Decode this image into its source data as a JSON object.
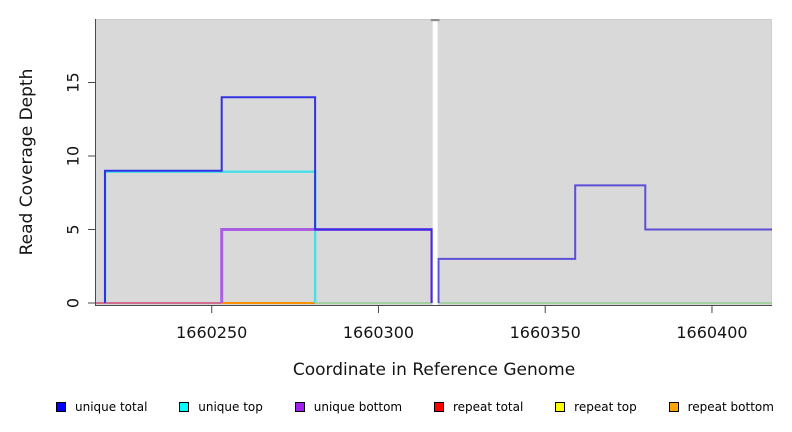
{
  "chart_data": {
    "type": "line",
    "subtype": "step-coverage-plot",
    "title": "",
    "xlabel": "Coordinate in Reference Genome",
    "ylabel": "Read Coverage Depth",
    "x_ticks": [
      1660250,
      1660300,
      1660350,
      1660400
    ],
    "x_tick_labels": [
      "1660250",
      "1660300",
      "1660350",
      "1660400"
    ],
    "y_ticks": [
      0,
      5,
      10,
      15
    ],
    "y_tick_labels": [
      "0",
      "5",
      "10",
      "15"
    ],
    "xlim": [
      1660215.3,
      1660418
    ],
    "ylim": [
      0,
      19.3
    ],
    "grid": false,
    "legend_position": "bottom",
    "panel_bg": "#d9d9d9",
    "axis_color": "#4a4a4a",
    "gap": {
      "from": 1660316,
      "to": 1660318,
      "color": "#ffffff",
      "top_dash_color": "#8f8f8f"
    },
    "series": [
      {
        "name": "unique total",
        "legend_color": "#0000ff",
        "steps": [
          {
            "from": 1660218,
            "to": 1660253,
            "depth": 9
          },
          {
            "from": 1660253,
            "to": 1660281,
            "depth": 14
          },
          {
            "from": 1660281,
            "to": 1660316,
            "depth": 5
          },
          {
            "from": 1660318,
            "to": 1660359,
            "depth": 3
          },
          {
            "from": 1660359,
            "to": 1660380,
            "depth": 8
          },
          {
            "from": 1660380,
            "to": 1660418,
            "depth": 5
          }
        ]
      },
      {
        "name": "unique top",
        "legend_color": "#00ffff",
        "steps": [
          {
            "from": 1660218,
            "to": 1660281,
            "depth": 9
          },
          {
            "from": 1660281,
            "to": 1660418,
            "depth": 0
          }
        ]
      },
      {
        "name": "unique bottom",
        "legend_color": "#a020f0",
        "steps": [
          {
            "from": 1660253,
            "to": 1660316,
            "depth": 5
          },
          {
            "from": 1660316,
            "to": 1660418,
            "depth": 0
          }
        ]
      },
      {
        "name": "repeat total",
        "legend_color": "#ff0000",
        "steps": [
          {
            "from": 1660215,
            "to": 1660418,
            "depth": 0
          }
        ]
      },
      {
        "name": "repeat top",
        "legend_color": "#ffff00",
        "steps": [
          {
            "from": 1660215,
            "to": 1660418,
            "depth": 0
          }
        ]
      },
      {
        "name": "repeat bottom",
        "legend_color": "#ffa500",
        "steps": [
          {
            "from": 1660215,
            "to": 1660418,
            "depth": 0
          }
        ]
      }
    ],
    "render_lines": [
      {
        "name": "repeat-total-line",
        "color": "#d06e8e",
        "width": 2,
        "points": [
          [
            1660215.3,
            0
          ],
          [
            1660253,
            0
          ]
        ]
      },
      {
        "name": "repeat-bottom-line",
        "color": "#ff9100",
        "width": 2,
        "points": [
          [
            1660253,
            0
          ],
          [
            1660281,
            0
          ]
        ]
      },
      {
        "name": "zero-overlap-line-left",
        "color": "#92ce92",
        "width": 1.6,
        "points": [
          [
            1660281,
            0
          ],
          [
            1660316,
            0
          ]
        ]
      },
      {
        "name": "zero-overlap-line-right",
        "color": "#92ce92",
        "width": 1.6,
        "points": [
          [
            1660318,
            0
          ],
          [
            1660418,
            0
          ]
        ]
      },
      {
        "name": "unique-top-line",
        "color": "#45e0e8",
        "width": 2.4,
        "points": [
          [
            1660218,
            0
          ],
          [
            1660218,
            8.93
          ],
          [
            1660281,
            8.93
          ],
          [
            1660281,
            0
          ]
        ]
      },
      {
        "name": "unique-bottom-line",
        "color": "#a95fe0",
        "width": 3,
        "points": [
          [
            1660253,
            0
          ],
          [
            1660253,
            5
          ],
          [
            1660316,
            5
          ],
          [
            1660316,
            0
          ]
        ]
      },
      {
        "name": "unique-total-line-left",
        "color": "#3232e2",
        "width": 2,
        "points": [
          [
            1660218,
            0
          ],
          [
            1660218,
            9
          ],
          [
            1660253,
            9
          ],
          [
            1660253,
            14
          ],
          [
            1660281,
            14
          ],
          [
            1660281,
            5
          ],
          [
            1660316,
            5
          ],
          [
            1660316,
            0
          ]
        ]
      },
      {
        "name": "unique-total-line-right",
        "color": "#5b4fd6",
        "width": 2,
        "points": [
          [
            1660318,
            0
          ],
          [
            1660318,
            3
          ],
          [
            1660359,
            3
          ],
          [
            1660359,
            8
          ],
          [
            1660380,
            8
          ],
          [
            1660380,
            5
          ],
          [
            1660418,
            5
          ]
        ]
      }
    ]
  },
  "legend": {
    "items": [
      {
        "label": "unique total",
        "color": "#0000ff"
      },
      {
        "label": "unique top",
        "color": "#00ffff"
      },
      {
        "label": "unique bottom",
        "color": "#a020f0"
      },
      {
        "label": "repeat total",
        "color": "#ff0000"
      },
      {
        "label": "repeat top",
        "color": "#ffff00"
      },
      {
        "label": "repeat bottom",
        "color": "#ffa500"
      }
    ]
  }
}
